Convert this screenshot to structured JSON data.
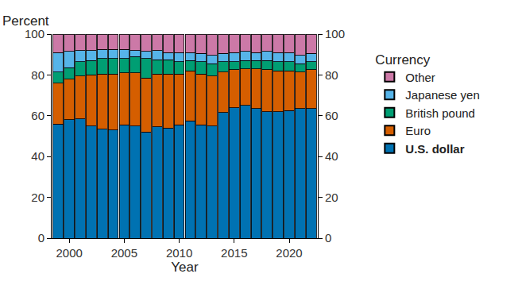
{
  "chart_data": {
    "type": "bar",
    "stacked": true,
    "xlabel": "Year",
    "ylabel": "Percent",
    "legend_title": "Currency",
    "legend": "right",
    "grid": false,
    "x": [
      1999,
      2000,
      2001,
      2002,
      2003,
      2004,
      2005,
      2006,
      2007,
      2008,
      2009,
      2010,
      2011,
      2012,
      2013,
      2014,
      2015,
      2016,
      2017,
      2018,
      2019,
      2020,
      2021,
      2022
    ],
    "xlim": [
      1998.4,
      2022.6
    ],
    "xticks": [
      2000,
      2005,
      2010,
      2015,
      2020
    ],
    "ylim": [
      0,
      100
    ],
    "yticks": [
      0,
      20,
      40,
      60,
      80,
      100
    ],
    "y2lim": [
      0,
      100
    ],
    "y2ticks": [
      0,
      20,
      40,
      60,
      80,
      100
    ],
    "series": [
      {
        "name": "U.S. dollar",
        "color": "#0072B2",
        "values": [
          56,
          58,
          58.5,
          55,
          53.5,
          53,
          55.5,
          55,
          52,
          54.5,
          54,
          55.5,
          57.5,
          55.5,
          55,
          61.5,
          64,
          65,
          63.5,
          62,
          62,
          62.5,
          63.5,
          63.5
        ]
      },
      {
        "name": "Euro",
        "color": "#D55E00",
        "values": [
          20,
          20,
          21,
          25,
          27,
          27.5,
          25.5,
          26,
          26.5,
          26,
          26.5,
          25,
          24.5,
          25,
          24.5,
          20,
          18.5,
          18,
          19.5,
          20.5,
          20,
          19.5,
          18,
          19
        ]
      },
      {
        "name": "British pound",
        "color": "#009E73",
        "values": [
          5.5,
          5.5,
          7,
          7,
          7.5,
          7.5,
          7,
          8,
          9.5,
          7,
          7,
          6,
          5,
          6,
          6,
          5,
          4,
          4,
          4,
          4.5,
          4.5,
          4.5,
          4,
          4
        ]
      },
      {
        "name": "Japanese yen",
        "color": "#56B4E9",
        "values": [
          9.5,
          8,
          5.5,
          5,
          4.5,
          4.5,
          4.5,
          3,
          3.5,
          4.5,
          3.5,
          4.5,
          4,
          4,
          4,
          4,
          4.5,
          4.5,
          4,
          4.5,
          4.5,
          4.5,
          4,
          4
        ]
      },
      {
        "name": "Other",
        "color": "#CC79A7",
        "values": [
          9,
          8.5,
          8,
          8,
          7.5,
          7.5,
          7.5,
          8,
          8.5,
          8,
          9,
          9,
          9,
          9.5,
          10.5,
          9.5,
          9,
          8.5,
          9,
          8.5,
          9,
          9,
          10.5,
          9.5
        ]
      }
    ]
  }
}
